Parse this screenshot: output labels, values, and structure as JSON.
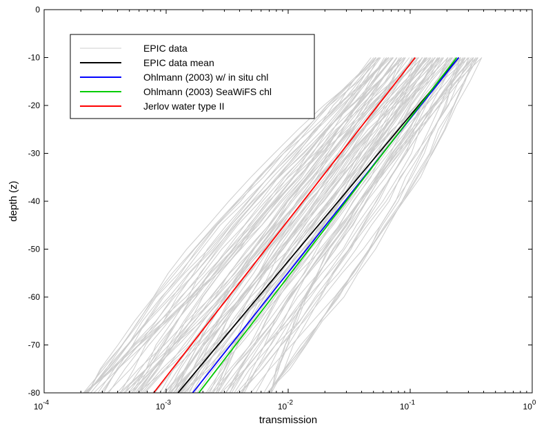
{
  "chart_data": {
    "type": "line",
    "title": "",
    "xlabel": "transmission",
    "ylabel": "depth (z)",
    "xscale": "log",
    "xlim": [
      0.0001,
      1
    ],
    "ylim": [
      -80,
      0
    ],
    "x_ticks": [
      {
        "value": 0.0001,
        "base": "10",
        "exp": "-4"
      },
      {
        "value": 0.001,
        "base": "10",
        "exp": "-3"
      },
      {
        "value": 0.01,
        "base": "10",
        "exp": "-2"
      },
      {
        "value": 0.1,
        "base": "10",
        "exp": "-1"
      },
      {
        "value": 1,
        "base": "10",
        "exp": "0"
      }
    ],
    "y_ticks": [
      0,
      -10,
      -20,
      -30,
      -40,
      -50,
      -60,
      -70,
      -80
    ],
    "grid": false,
    "legend_position": "top-left",
    "series": [
      {
        "name": "EPIC data",
        "color": "#cccccc",
        "style": "band",
        "x": [
          0.05,
          0.4
        ],
        "y": [
          -10,
          -10
        ],
        "x_bottom": [
          0.00022,
          0.007
        ]
      },
      {
        "name": "EPIC data mean",
        "color": "#000000",
        "x": [
          0.25,
          0.00125
        ],
        "y": [
          -10,
          -80
        ]
      },
      {
        "name": "Ohlmann (2003) w/ in situ chl",
        "color": "#0000ff",
        "x": [
          0.25,
          0.00165
        ],
        "y": [
          -10,
          -80
        ]
      },
      {
        "name": "Ohlmann (2003) SeaWiFS chl",
        "color": "#00cc00",
        "x": [
          0.24,
          0.00185
        ],
        "y": [
          -10,
          -80
        ]
      },
      {
        "name": "Jerlov water type II",
        "color": "#ff0000",
        "x": [
          0.11,
          0.00079
        ],
        "y": [
          -10,
          -80
        ]
      }
    ]
  }
}
